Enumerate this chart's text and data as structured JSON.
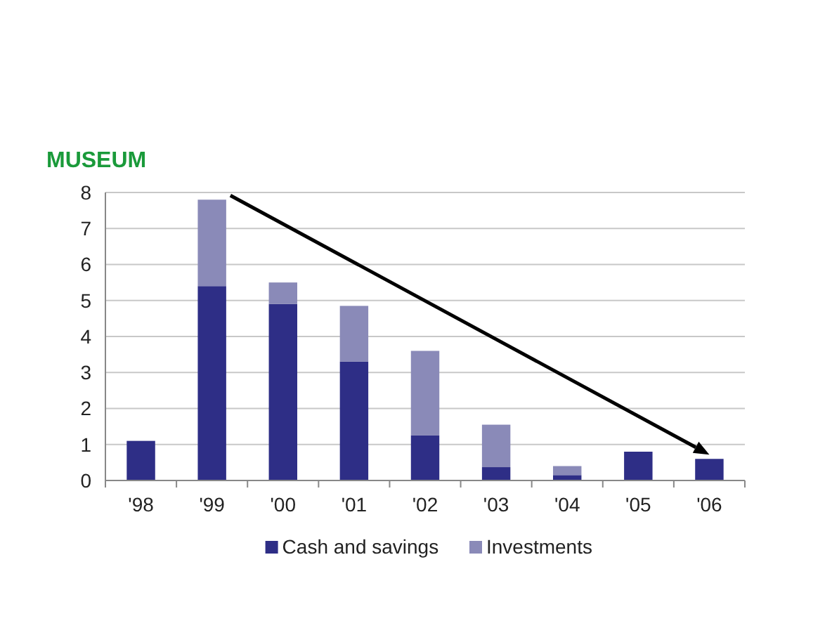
{
  "chart_data": {
    "type": "bar",
    "title": "MUSEUM",
    "stacked": true,
    "categories": [
      "'98",
      "'99",
      "'00",
      "'01",
      "'02",
      "'03",
      "'04",
      "'05",
      "'06"
    ],
    "series": [
      {
        "name": "Cash and savings",
        "color": "#2e2e86",
        "values": [
          1.1,
          5.4,
          4.9,
          3.3,
          1.25,
          0.37,
          0.15,
          0.8,
          0.6
        ]
      },
      {
        "name": "Investments",
        "color": "#8a8ab8",
        "values": [
          0,
          2.4,
          0.6,
          1.55,
          2.35,
          1.18,
          0.25,
          0,
          0
        ]
      }
    ],
    "ylim": [
      0,
      8
    ],
    "yticks": [
      0,
      1,
      2,
      3,
      4,
      5,
      6,
      7,
      8
    ],
    "grid": "y",
    "legend": "bottom"
  }
}
